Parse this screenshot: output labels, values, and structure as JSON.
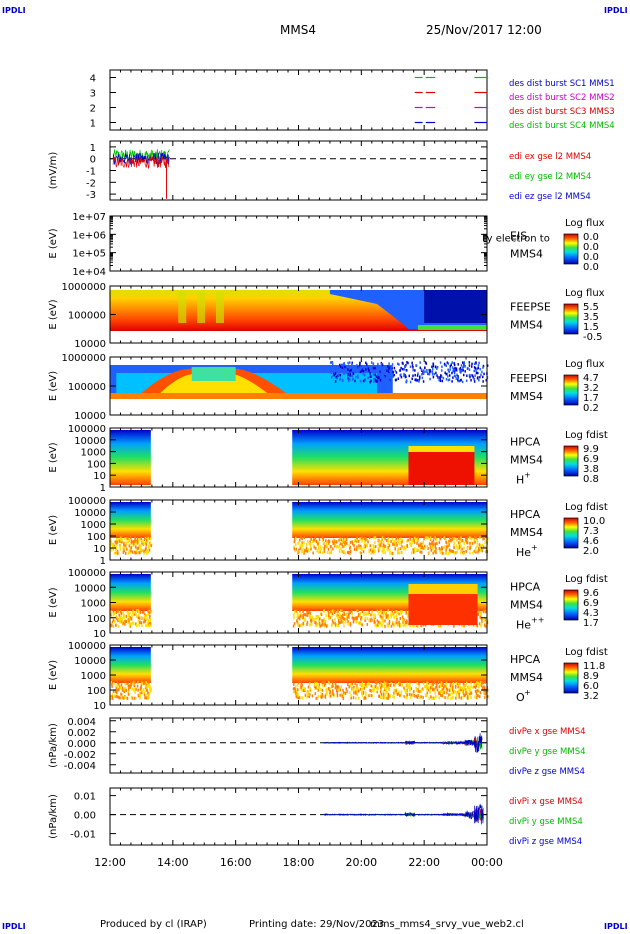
{
  "header": {
    "corner_label": "IPDLI",
    "spacecraft": "MMS4",
    "datetime": "25/Nov/2017 12:00"
  },
  "footer": {
    "credit": "Produced by cl (IRAP)",
    "printing": "Printing date: 29/Nov/2023",
    "script": "mms_mms4_srvy_vue_web2.cl"
  },
  "colors": {
    "red": "#dd0000",
    "green": "#00bb00",
    "blue": "#0000cc",
    "magenta": "#cc00cc"
  },
  "chart_data": [
    {
      "type": "line",
      "panel": "burst",
      "yticks": [
        "1",
        "2",
        "3",
        "4"
      ],
      "ylim": [
        0.5,
        4.5
      ],
      "legend": [
        {
          "name": "des dist burst SC1 MMS1",
          "color": "#0000cc"
        },
        {
          "name": "des dist burst SC2 MMS2",
          "color": "#cc00cc"
        },
        {
          "name": "des dist burst SC3 MMS3",
          "color": "#dd0000"
        },
        {
          "name": "des dist burst SC4 MMS4",
          "color": "#00bb00"
        }
      ],
      "series": [
        {
          "y": 4,
          "color": "#00bb00",
          "segments": [
            [
              21.7,
              21.95
            ],
            [
              22.05,
              22.35
            ],
            [
              23.6,
              24.0
            ]
          ]
        },
        {
          "y": 3,
          "color": "#dd0000",
          "segments": [
            [
              21.7,
              21.95
            ],
            [
              22.05,
              22.35
            ],
            [
              23.6,
              24.0
            ]
          ]
        },
        {
          "y": 2,
          "color": "#cc00cc",
          "segments": [
            [
              21.7,
              21.95
            ],
            [
              22.05,
              22.35
            ],
            [
              23.6,
              24.0
            ]
          ]
        },
        {
          "y": 1,
          "color": "#0000cc",
          "segments": [
            [
              21.7,
              21.95
            ],
            [
              22.05,
              22.35
            ],
            [
              23.6,
              24.0
            ]
          ]
        }
      ]
    },
    {
      "type": "line",
      "panel": "edi",
      "ylabel": "(mV/m)",
      "yticks": [
        "1",
        "0",
        "-1",
        "-2",
        "-3"
      ],
      "ylim": [
        -3.5,
        1.5
      ],
      "legend": [
        {
          "name": "edi ex gse l2 MMS4",
          "color": "#dd0000"
        },
        {
          "name": "edi ey gse l2 MMS4",
          "color": "#00bb00"
        },
        {
          "name": "edi ez gse l2 MMS4",
          "color": "#0000cc"
        }
      ],
      "xrange": [
        12.1,
        13.9
      ]
    },
    {
      "type": "heatmap",
      "panel": "EIS",
      "ylabel": "E (eV)",
      "yticks": [
        "1e+07",
        "1e+06",
        "1e+05",
        "1e+04"
      ],
      "names": [
        "EIS",
        "MMS4"
      ],
      "overlay": "Ly electron to",
      "cbar_title": "Log flux",
      "cbar_ticks": [
        "0.0",
        "0.0",
        "0.0",
        "0.0"
      ]
    },
    {
      "type": "heatmap",
      "panel": "FEEPSE",
      "ylabel": "E (eV)",
      "yticks": [
        "1000000",
        "100000",
        "10000"
      ],
      "names": [
        "FEEPSE",
        "MMS4"
      ],
      "cbar_title": "Log flux",
      "cbar_ticks": [
        "5.5",
        "3.5",
        "1.5",
        "-0.5"
      ]
    },
    {
      "type": "heatmap",
      "panel": "FEEPSI",
      "ylabel": "E (eV)",
      "yticks": [
        "1000000",
        "100000",
        "10000"
      ],
      "names": [
        "FEEPSI",
        "MMS4"
      ],
      "cbar_title": "Log flux",
      "cbar_ticks": [
        "4.7",
        "3.2",
        "1.7",
        "0.2"
      ]
    },
    {
      "type": "heatmap",
      "panel": "HPCA H+",
      "ylabel": "E (eV)",
      "yticks": [
        "100000",
        "10000",
        "1000",
        "100",
        "10",
        "1"
      ],
      "names": [
        "HPCA",
        "MMS4",
        "H",
        "+"
      ],
      "cbar_title": "Log fdist",
      "cbar_ticks": [
        "9.9",
        "6.9",
        "3.8",
        "0.8"
      ]
    },
    {
      "type": "heatmap",
      "panel": "HPCA He+",
      "ylabel": "E (eV)",
      "yticks": [
        "100000",
        "10000",
        "1000",
        "100",
        "10",
        "1"
      ],
      "names": [
        "HPCA",
        "MMS4",
        "He",
        "+"
      ],
      "cbar_title": "Log fdist",
      "cbar_ticks": [
        "10.0",
        "7.3",
        "4.6",
        "2.0"
      ]
    },
    {
      "type": "heatmap",
      "panel": "HPCA He++",
      "ylabel": "E (eV)",
      "yticks": [
        "100000",
        "10000",
        "1000",
        "100",
        "10"
      ],
      "names": [
        "HPCA",
        "MMS4",
        "He",
        "++"
      ],
      "cbar_title": "Log fdist",
      "cbar_ticks": [
        "9.6",
        "6.9",
        "4.3",
        "1.7"
      ]
    },
    {
      "type": "heatmap",
      "panel": "HPCA O+",
      "ylabel": "E (eV)",
      "yticks": [
        "100000",
        "10000",
        "1000",
        "100",
        "10"
      ],
      "names": [
        "HPCA",
        "MMS4",
        "O",
        "+"
      ],
      "cbar_title": "Log fdist",
      "cbar_ticks": [
        "11.8",
        "8.9",
        "6.0",
        "3.2"
      ]
    },
    {
      "type": "line",
      "panel": "divPe",
      "ylabel": "(nPa/km)",
      "yticks": [
        "0.004",
        "0.002",
        "0.000",
        "-0.002",
        "-0.004"
      ],
      "ylim": [
        -0.0055,
        0.0045
      ],
      "legend": [
        {
          "name": "divPe x gse MMS4",
          "color": "#dd0000"
        },
        {
          "name": "divPe y gse MMS4",
          "color": "#00bb00"
        },
        {
          "name": "divPe z gse MMS4",
          "color": "#0000cc"
        }
      ],
      "xrange": [
        18.8,
        23.85
      ]
    },
    {
      "type": "line",
      "panel": "divPi",
      "ylabel": "(nPa/km)",
      "yticks": [
        "0.01",
        "0.00",
        "-0.01"
      ],
      "ylim": [
        -0.016,
        0.014
      ],
      "legend": [
        {
          "name": "divPi x gse MMS4",
          "color": "#dd0000"
        },
        {
          "name": "divPi y gse MMS4",
          "color": "#00bb00"
        },
        {
          "name": "divPi z gse MMS4",
          "color": "#0000cc"
        }
      ],
      "xrange": [
        18.8,
        23.9
      ]
    }
  ],
  "xaxis": {
    "ticks": [
      "12:00",
      "14:00",
      "16:00",
      "18:00",
      "20:00",
      "22:00",
      "00:00"
    ],
    "range_hours": [
      12,
      24
    ]
  }
}
